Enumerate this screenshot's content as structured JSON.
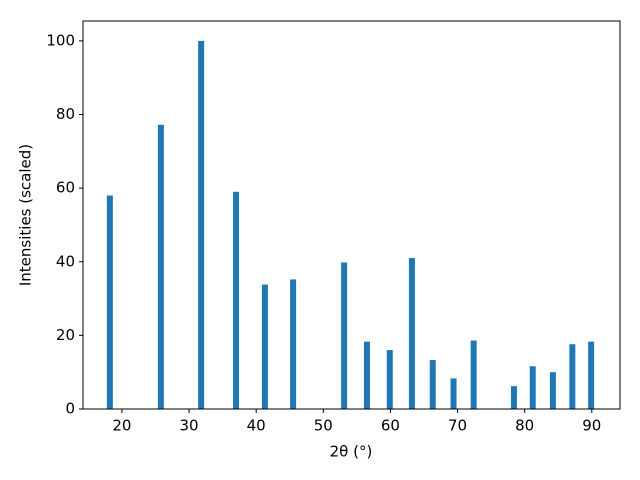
{
  "chart_data": {
    "type": "bar",
    "xlabel": "2θ (°)",
    "ylabel": "Intensities (scaled)",
    "x": [
      18.2,
      25.8,
      31.8,
      37.0,
      41.3,
      45.5,
      53.1,
      56.5,
      59.9,
      63.2,
      66.3,
      69.4,
      72.4,
      78.4,
      81.2,
      84.2,
      87.1,
      89.9
    ],
    "values": [
      58,
      77.2,
      100,
      59,
      33.8,
      35.2,
      39.8,
      18.3,
      16,
      41,
      13.3,
      8.3,
      18.6,
      6.2,
      11.6,
      10,
      17.6,
      18.3
    ],
    "color": "#1f77b4",
    "xlim": [
      14.2,
      94.2
    ],
    "ylim": [
      0,
      105.4
    ],
    "xticks": [
      20,
      30,
      40,
      50,
      60,
      70,
      80,
      90
    ],
    "yticks": [
      0,
      20,
      40,
      60,
      80,
      100
    ],
    "grid": false
  }
}
